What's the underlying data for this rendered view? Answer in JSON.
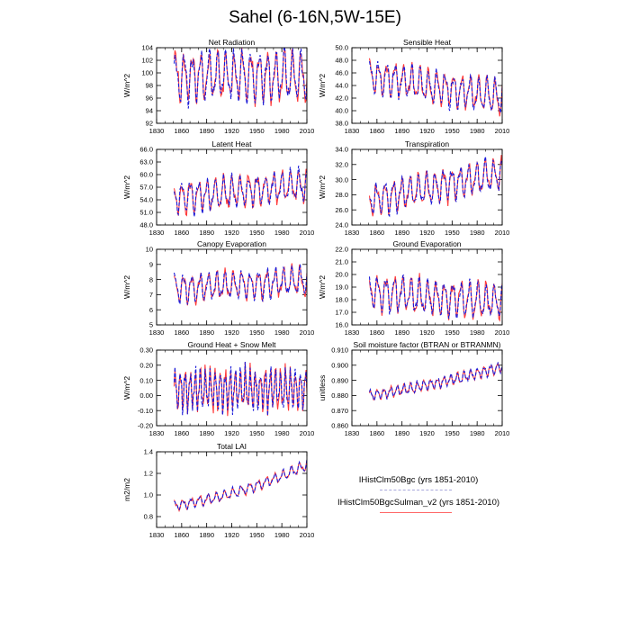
{
  "title": "Sahel (6-16N,5W-15E)",
  "colors": {
    "dashed_series": "#1a1ad8",
    "solid_series": "#ff3a3a",
    "axis": "#000000"
  },
  "legend": [
    {
      "label": "IHistClm50Bgc (yrs 1851-2010)",
      "style": "dashed",
      "color": "#1a1ad8"
    },
    {
      "label": "IHistClm50BgcSulman_v2 (yrs 1851-2010)",
      "style": "solid",
      "color": "#ff3a3a"
    }
  ],
  "chart_data": [
    {
      "type": "line",
      "title": "Net Radiation",
      "ylabel": "W/m^2",
      "xlim": [
        1830,
        2010
      ],
      "ylim": [
        92,
        104
      ],
      "xticks": [
        1830,
        1860,
        1890,
        1920,
        1950,
        1980,
        2010
      ],
      "yticks": [
        92,
        94,
        96,
        98,
        100,
        102,
        104
      ],
      "ytick_labels": [
        "92",
        "94",
        "96",
        "98",
        "100",
        "102",
        "104"
      ],
      "data_start": 1851,
      "data_end": 2010,
      "base": [
        99.5,
        99.5
      ],
      "amp": 3.3,
      "period": 10,
      "phase": 0.4,
      "trend": 0
    },
    {
      "type": "line",
      "title": "Sensible Heat",
      "ylabel": "W/m^2",
      "xlim": [
        1830,
        2010
      ],
      "ylim": [
        38,
        50
      ],
      "xticks": [
        1830,
        1860,
        1890,
        1920,
        1950,
        1980,
        2010
      ],
      "yticks": [
        38,
        40,
        42,
        44,
        46,
        48,
        50
      ],
      "ytick_labels": [
        "38.0",
        "40.0",
        "42.0",
        "44.0",
        "46.0",
        "48.0",
        "50.0"
      ],
      "data_start": 1851,
      "data_end": 2010,
      "base": [
        45.5,
        42.0
      ],
      "amp": 2.2,
      "period": 10,
      "phase": 1.1,
      "trend": 0
    },
    {
      "type": "line",
      "title": "Latent Heat",
      "ylabel": "W/m^2",
      "xlim": [
        1830,
        2010
      ],
      "ylim": [
        48,
        66
      ],
      "xticks": [
        1830,
        1860,
        1890,
        1920,
        1950,
        1980,
        2010
      ],
      "yticks": [
        48,
        51,
        54,
        57,
        60,
        63,
        66
      ],
      "ytick_labels": [
        "48.0",
        "51.0",
        "54.0",
        "57.0",
        "60.0",
        "63.0",
        "66.0"
      ],
      "data_start": 1851,
      "data_end": 2010,
      "base": [
        54.5,
        57.5
      ],
      "amp": 3.2,
      "period": 10,
      "phase": 2.0,
      "trend": 0
    },
    {
      "type": "line",
      "title": "Transpiration",
      "ylabel": "W/m^2",
      "xlim": [
        1830,
        2010
      ],
      "ylim": [
        24,
        34
      ],
      "xticks": [
        1830,
        1860,
        1890,
        1920,
        1950,
        1980,
        2010
      ],
      "yticks": [
        24,
        26,
        28,
        30,
        32,
        34
      ],
      "ytick_labels": [
        "24.0",
        "26.0",
        "28.0",
        "30.0",
        "32.0",
        "34.0"
      ],
      "data_start": 1851,
      "data_end": 2010,
      "base": [
        27.3,
        30.8
      ],
      "amp": 1.8,
      "period": 10,
      "phase": 2.4,
      "trend": 0
    },
    {
      "type": "line",
      "title": "Canopy Evaporation",
      "ylabel": "W/m^2",
      "xlim": [
        1830,
        2010
      ],
      "ylim": [
        5,
        10
      ],
      "xticks": [
        1830,
        1860,
        1890,
        1920,
        1950,
        1980,
        2010
      ],
      "yticks": [
        5,
        6,
        7,
        8,
        9,
        10
      ],
      "ytick_labels": [
        "5",
        "6",
        "7",
        "8",
        "9",
        "10"
      ],
      "data_start": 1851,
      "data_end": 2010,
      "base": [
        7.4,
        7.9
      ],
      "amp": 0.8,
      "period": 10,
      "phase": 0.9,
      "trend": 0
    },
    {
      "type": "line",
      "title": "Ground Evaporation",
      "ylabel": "W/m^2",
      "xlim": [
        1830,
        2010
      ],
      "ylim": [
        16,
        22
      ],
      "xticks": [
        1830,
        1860,
        1890,
        1920,
        1950,
        1980,
        2010
      ],
      "yticks": [
        16,
        17,
        18,
        19,
        20,
        21,
        22
      ],
      "ytick_labels": [
        "16.0",
        "17.0",
        "18.0",
        "19.0",
        "20.0",
        "21.0",
        "22.0"
      ],
      "data_start": 1851,
      "data_end": 2010,
      "base": [
        18.6,
        17.8
      ],
      "amp": 1.2,
      "period": 10,
      "phase": 1.7,
      "trend": 0
    },
    {
      "type": "line",
      "title": "Ground Heat + Snow Melt",
      "ylabel": "W/m^2",
      "xlim": [
        1830,
        2010
      ],
      "ylim": [
        -0.2,
        0.3
      ],
      "xticks": [
        1830,
        1860,
        1890,
        1920,
        1950,
        1980,
        2010
      ],
      "yticks": [
        -0.2,
        -0.1,
        0,
        0.1,
        0.2,
        0.3
      ],
      "ytick_labels": [
        "-0.20",
        "-0.10",
        "0.00",
        "0.10",
        "0.20",
        "0.30"
      ],
      "data_start": 1851,
      "data_end": 2010,
      "base": [
        0.04,
        0.04
      ],
      "amp": 0.12,
      "period": 6,
      "phase": 0.2,
      "trend": 0
    },
    {
      "type": "line",
      "title": "Soil moisture factor (BTRAN or BTRANMN)",
      "ylabel": "unitless",
      "xlim": [
        1830,
        2010
      ],
      "ylim": [
        0.86,
        0.91
      ],
      "xticks": [
        1830,
        1860,
        1890,
        1920,
        1950,
        1980,
        2010
      ],
      "yticks": [
        0.86,
        0.87,
        0.88,
        0.89,
        0.9,
        0.91
      ],
      "ytick_labels": [
        "0.860",
        "0.870",
        "0.880",
        "0.890",
        "0.900",
        "0.910"
      ],
      "data_start": 1851,
      "data_end": 2010,
      "base": [
        0.88,
        0.894
      ],
      "amp": 0.003,
      "period": 8,
      "phase": 0.5,
      "trend": 0.005
    },
    {
      "type": "line",
      "title": "Total LAI",
      "ylabel": "m2/m2",
      "xlim": [
        1830,
        2010
      ],
      "ylim": [
        0.7,
        1.4
      ],
      "xticks": [
        1830,
        1860,
        1890,
        1920,
        1950,
        1980,
        2010
      ],
      "yticks": [
        0.8,
        1.0,
        1.2,
        1.4
      ],
      "ytick_labels": [
        "0.8",
        "1.0",
        "1.2",
        "1.4"
      ],
      "data_start": 1851,
      "data_end": 2010,
      "base": [
        0.9,
        1.1
      ],
      "amp": 0.04,
      "period": 10,
      "phase": 1.3,
      "trend": 0.18
    }
  ]
}
